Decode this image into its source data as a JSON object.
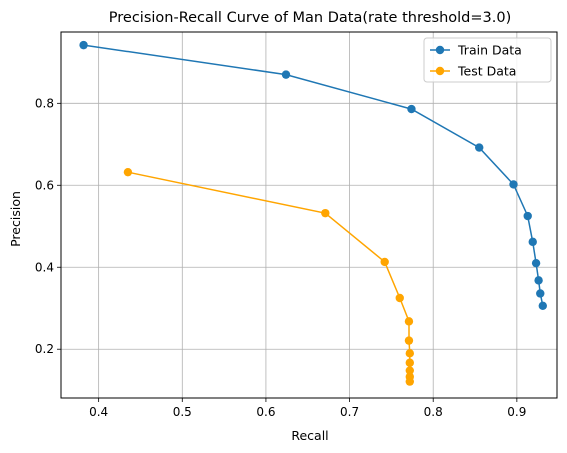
{
  "chart_data": {
    "type": "line",
    "title": "Precision-Recall Curve of Man Data(rate threshold=3.0)",
    "xlabel": "Recall",
    "ylabel": "Precision",
    "xlim": [
      0.355,
      0.948
    ],
    "ylim": [
      0.081,
      0.974
    ],
    "xticks": [
      "0.4",
      "0.5",
      "0.6",
      "0.7",
      "0.8",
      "0.9"
    ],
    "xtick_values": [
      0.4,
      0.5,
      0.6,
      0.7,
      0.8,
      0.9
    ],
    "yticks": [
      "0.2",
      "0.4",
      "0.6",
      "0.8"
    ],
    "ytick_values": [
      0.2,
      0.4,
      0.6,
      0.8
    ],
    "grid": true,
    "legend_position": "top-right",
    "series": [
      {
        "name": "Train Data",
        "color": "#1f77b4",
        "marker": "circle",
        "x": [
          0.382,
          0.624,
          0.774,
          0.855,
          0.896,
          0.913,
          0.919,
          0.923,
          0.926,
          0.928,
          0.931
        ],
        "y": [
          0.942,
          0.87,
          0.786,
          0.692,
          0.602,
          0.525,
          0.462,
          0.41,
          0.368,
          0.336,
          0.306
        ]
      },
      {
        "name": "Test Data",
        "color": "#ffa500",
        "marker": "circle",
        "x": [
          0.435,
          0.671,
          0.742,
          0.76,
          0.771,
          0.771,
          0.772,
          0.772,
          0.772,
          0.772,
          0.772
        ],
        "y": [
          0.632,
          0.532,
          0.413,
          0.325,
          0.268,
          0.221,
          0.19,
          0.167,
          0.148,
          0.133,
          0.121
        ]
      }
    ]
  }
}
